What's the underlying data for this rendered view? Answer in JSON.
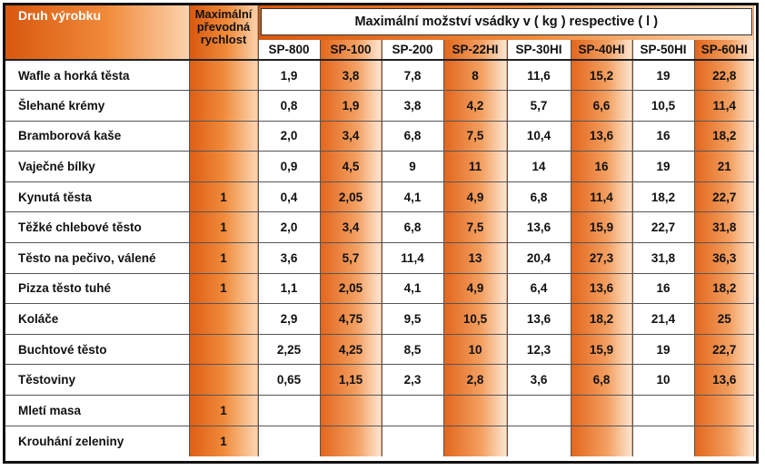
{
  "header": {
    "product_label": "Druh výrobku",
    "speed_label_lines": [
      "Maximální",
      "převodná",
      "rychlost"
    ],
    "capacity_title": "Maximální možství vsádky v ( kg ) respective ( l )"
  },
  "models": [
    "SP-800",
    "SP-100",
    "SP-200",
    "SP-22HI",
    "SP-30HI",
    "SP-40HI",
    "SP-50HI",
    "SP-60HI"
  ],
  "rows": [
    {
      "name": "Wafle a horká těsta",
      "speed": "",
      "values": [
        "1,9",
        "3,8",
        "7,8",
        "8",
        "11,6",
        "15,2",
        "19",
        "22,8"
      ]
    },
    {
      "name": "Šlehané krémy",
      "speed": "",
      "values": [
        "0,8",
        "1,9",
        "3,8",
        "4,2",
        "5,7",
        "6,6",
        "10,5",
        "11,4"
      ]
    },
    {
      "name": "Bramborová kaše",
      "speed": "",
      "values": [
        "2,0",
        "3,4",
        "6,8",
        "7,5",
        "10,4",
        "13,6",
        "16",
        "18,2"
      ]
    },
    {
      "name": "Vaječné bílky",
      "speed": "",
      "values": [
        "0,9",
        "4,5",
        "9",
        "11",
        "14",
        "16",
        "19",
        "21"
      ]
    },
    {
      "name": "Kynutá těsta",
      "speed": "1",
      "values": [
        "0,4",
        "2,05",
        "4,1",
        "4,9",
        "6,8",
        "11,4",
        "18,2",
        "22,7"
      ]
    },
    {
      "name": "Těžké chlebové těsto",
      "speed": "1",
      "values": [
        "2,0",
        "3,4",
        "6,8",
        "7,5",
        "13,6",
        "15,9",
        "22,7",
        "31,8"
      ]
    },
    {
      "name": "Těsto na pečivo, válené",
      "speed": "1",
      "values": [
        "3,6",
        "5,7",
        "11,4",
        "13",
        "20,4",
        "27,3",
        "31,8",
        "36,3"
      ]
    },
    {
      "name": "Pizza těsto tuhé",
      "speed": "1",
      "values": [
        "1,1",
        "2,05",
        "4,1",
        "4,9",
        "6,4",
        "13,6",
        "16",
        "18,2"
      ]
    },
    {
      "name": "Koláče",
      "speed": "",
      "values": [
        "2,9",
        "4,75",
        "9,5",
        "10,5",
        "13,6",
        "18,2",
        "21,4",
        "25"
      ]
    },
    {
      "name": "Buchtové těsto",
      "speed": "",
      "values": [
        "2,25",
        "4,25",
        "8,5",
        "10",
        "12,3",
        "15,9",
        "19",
        "22,7"
      ]
    },
    {
      "name": "Těstoviny",
      "speed": "",
      "values": [
        "0,65",
        "1,15",
        "2,3",
        "2,8",
        "3,6",
        "6,8",
        "10",
        "13,6"
      ]
    },
    {
      "name": "Mletí masa",
      "speed": "1",
      "values": [
        "",
        "",
        "",
        "",
        "",
        "",
        "",
        ""
      ]
    },
    {
      "name": "Krouhání zeleniny",
      "speed": "1",
      "values": [
        "",
        "",
        "",
        "",
        "",
        "",
        "",
        ""
      ]
    }
  ],
  "colors": {
    "accent": "#e2661c",
    "accent_light": "#fde6d2",
    "border": "#111111"
  }
}
